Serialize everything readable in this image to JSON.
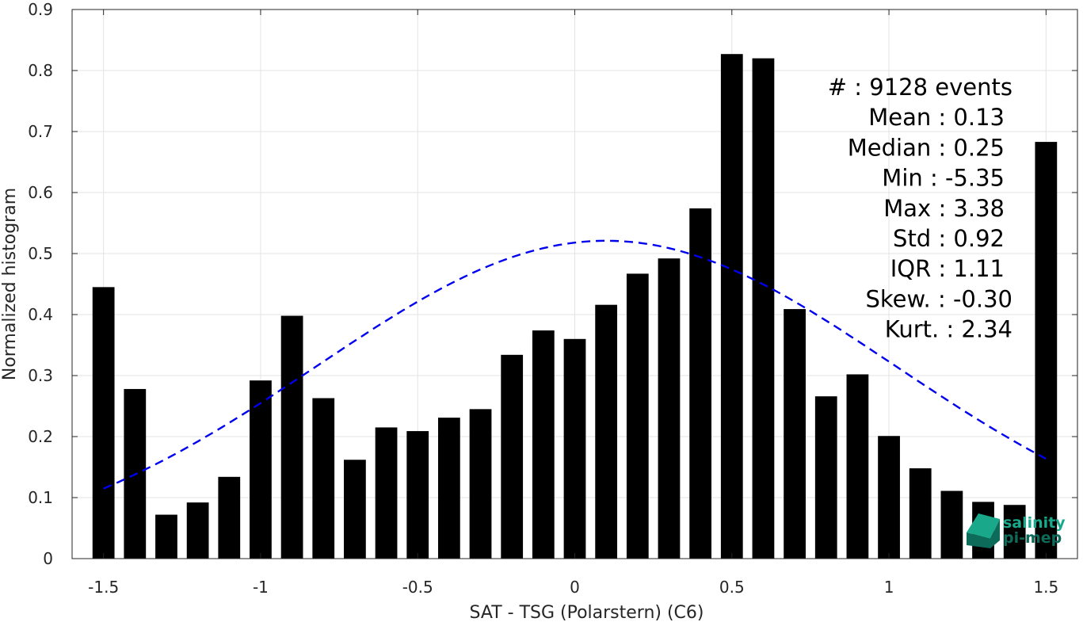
{
  "chart_data": {
    "type": "bar",
    "xlabel": "SAT - TSG (Polarstern) (C6)",
    "ylabel": "Normalized histogram",
    "xlim": [
      -1.6,
      1.6
    ],
    "ylim": [
      0,
      0.9
    ],
    "grid": true,
    "xticks": [
      -1.5,
      -1,
      -0.5,
      0,
      0.5,
      1,
      1.5
    ],
    "xtick_labels": [
      "-1.5",
      "-1",
      "-0.5",
      "0",
      "0.5",
      "1",
      "1.5"
    ],
    "yticks": [
      0,
      0.1,
      0.2,
      0.3,
      0.4,
      0.5,
      0.6,
      0.7,
      0.8,
      0.9
    ],
    "ytick_labels": [
      "0",
      "0.1",
      "0.2",
      "0.3",
      "0.4",
      "0.5",
      "0.6",
      "0.7",
      "0.8",
      "0.9"
    ],
    "bar_color": "#000000",
    "bin_width": 0.1,
    "x": [
      -1.5,
      -1.4,
      -1.3,
      -1.2,
      -1.1,
      -1.0,
      -0.9,
      -0.8,
      -0.7,
      -0.6,
      -0.5,
      -0.4,
      -0.3,
      -0.2,
      -0.1,
      0.0,
      0.1,
      0.2,
      0.3,
      0.4,
      0.5,
      0.6,
      0.7,
      0.8,
      0.9,
      1.0,
      1.1,
      1.2,
      1.3,
      1.4,
      1.5
    ],
    "values": [
      0.445,
      0.278,
      0.072,
      0.092,
      0.134,
      0.292,
      0.398,
      0.263,
      0.162,
      0.215,
      0.209,
      0.231,
      0.245,
      0.334,
      0.374,
      0.36,
      0.416,
      0.467,
      0.492,
      0.574,
      0.827,
      0.82,
      0.409,
      0.266,
      0.302,
      0.201,
      0.148,
      0.111,
      0.093,
      0.088,
      0.683
    ],
    "fit_curve": {
      "type": "gaussian",
      "color": "#0000ee",
      "style": "dashed",
      "mean": 0.1,
      "std": 0.92,
      "peak": 0.521,
      "x_range": [
        -1.5,
        1.5
      ]
    },
    "stats_box": {
      "placement": "top-right",
      "lines": [
        "#  : 9128 events",
        "Mean : 0.13",
        "Median : 0.25",
        "Min : -5.35",
        "Max : 3.38",
        "Std : 0.92",
        "IQR : 1.11",
        "Skew. : -0.30",
        "Kurt. : 2.34"
      ]
    }
  },
  "logo": {
    "line1": "salinity",
    "line2": "pi-mep",
    "color": "#1aa88a",
    "dark_color": "#0d6b5a"
  }
}
